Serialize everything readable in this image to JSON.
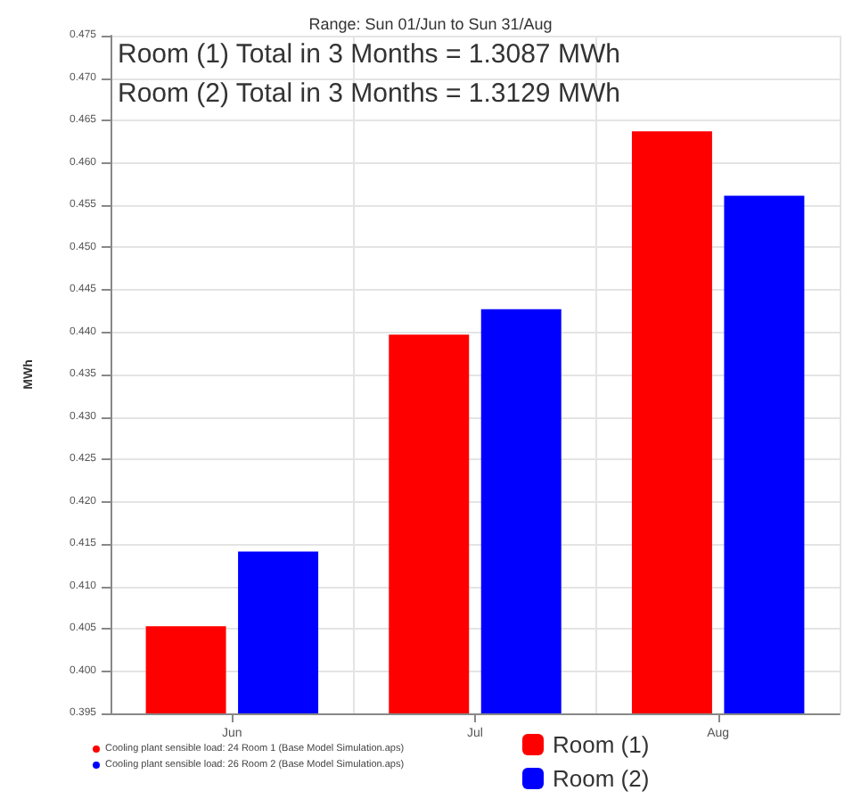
{
  "chart_data": {
    "type": "bar",
    "title": "Range: Sun 01/Jun to Sun 31/Aug",
    "ylabel": "MWh",
    "categories": [
      "Jun",
      "Jul",
      "Aug"
    ],
    "series": [
      {
        "name": "Room (1)",
        "color": "#ff0000",
        "values": [
          0.4053,
          0.4397,
          0.4637
        ]
      },
      {
        "name": "Room (2)",
        "color": "#0000ff",
        "values": [
          0.4141,
          0.4427,
          0.4561
        ]
      }
    ],
    "ylim": [
      0.395,
      0.475
    ],
    "yticks": [
      0.395,
      {
        "value": 0.4,
        "label": "0.400"
      },
      0.405,
      {
        "value": 0.41,
        "label": "0.410"
      },
      0.415,
      {
        "value": 0.42,
        "label": "0.420"
      },
      0.425,
      {
        "value": 0.43,
        "label": "0.430"
      },
      0.435,
      {
        "value": 0.44,
        "label": "0.440"
      },
      0.445,
      {
        "value": 0.45,
        "label": "0.450"
      },
      0.455,
      {
        "value": 0.46,
        "label": "0.460"
      },
      0.465,
      {
        "value": 0.47,
        "label": "0.470"
      },
      0.475
    ],
    "grid": true,
    "legend": "bottom right",
    "annotations": [
      "Room (1) Total in 3 Months = 1.3087 MWh",
      "Room (2) Total in 3 Months = 1.3129 MWh",
      "Cooling plant sensible load: 24 Room 1 (Base Model Simulation.aps)",
      "Cooling plant sensible load: 26 Room 2 (Base Model Simulation.aps)"
    ]
  }
}
